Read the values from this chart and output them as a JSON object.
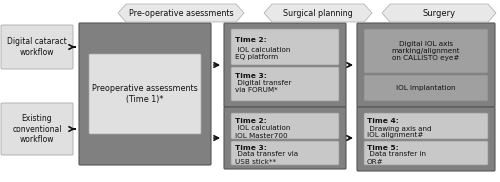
{
  "bg_color": "#ffffff",
  "dark_gray": "#808080",
  "medium_gray": "#a0a0a0",
  "light_gray": "#c8c8c8",
  "lighter_gray": "#e0e0e0",
  "header_gray": "#e8e8e8",
  "text_color": "#111111",
  "arrow_color": "#111111",
  "border_color": "#666666",
  "headers": [
    "Pre-operative asessments",
    "Surgical planning",
    "Surgery"
  ],
  "label_digital": "Digital cataract\nworkflow",
  "label_conventional": "Existing\nconventional\nworkflow",
  "preop_label": "Preoperative assessments\n(Time 1)*",
  "digital_sp_box1": "Time 2: IOL calculation\nEQ platform",
  "digital_sp_box2": "Time 3: Digital transfer\nvia FORUM*",
  "conv_sp_box1": "Time 2: IOL calculation\nIOL Master700",
  "conv_sp_box2": "Time 3: Data transfer via\nUSB stick**",
  "surg_digital_box1": "Digital IOL axis\nmarking/alignment\non CALLISTO eye#",
  "surg_digital_box2": "IOL implantation",
  "surg_conv_box1": "Time 4: Drawing axis and\nIOL alignment#",
  "surg_conv_box2": "Time 5: Data transfer in\nOR#",
  "figsize": [
    5.0,
    1.82
  ],
  "dpi": 100
}
